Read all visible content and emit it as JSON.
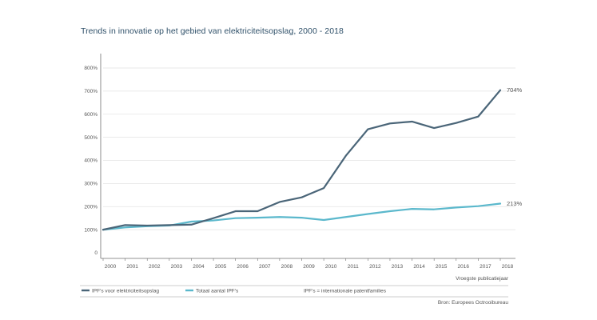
{
  "chart_data": {
    "type": "line",
    "title": "Trends in innovatie op het gebied van elektriciteitsopslag, 2000 - 2018",
    "xlabel": "Vroegste publicatiejaar",
    "ylabel": "",
    "x": [
      2000,
      2001,
      2002,
      2003,
      2004,
      2005,
      2006,
      2007,
      2008,
      2009,
      2010,
      2011,
      2012,
      2013,
      2014,
      2015,
      2016,
      2017,
      2018
    ],
    "x_tick_labels": [
      "2000",
      "2001",
      "2002",
      "2003",
      "2004",
      "2005",
      "2006",
      "2007",
      "2008",
      "2009",
      "2010",
      "2011",
      "2012",
      "2013",
      "2014",
      "2015",
      "2016",
      "2017",
      "2018"
    ],
    "ylim": [
      0,
      850
    ],
    "y_ticks": [
      0,
      100,
      200,
      300,
      400,
      500,
      600,
      700,
      800
    ],
    "y_tick_labels": [
      "0",
      "100%",
      "200%",
      "300%",
      "400%",
      "500%",
      "600%",
      "700%",
      "800%"
    ],
    "series": [
      {
        "name": "IPF's voor elektriciteitsopslag",
        "color": "#4a6578",
        "values": [
          100,
          120,
          118,
          120,
          122,
          150,
          180,
          180,
          220,
          240,
          280,
          420,
          535,
          560,
          568,
          540,
          562,
          590,
          704
        ],
        "end_label": "704%"
      },
      {
        "name": "Totaal aantal IPF's",
        "color": "#5bb8cc",
        "values": [
          100,
          110,
          115,
          118,
          135,
          140,
          150,
          152,
          155,
          152,
          142,
          155,
          168,
          180,
          190,
          188,
          196,
          202,
          213
        ],
        "end_label": "213%"
      }
    ],
    "grid": "horizontal",
    "legend_position": "bottom-left",
    "note": "IPF's = internationale patentfamilies",
    "source": "Bron: Europees Octrooibureau"
  }
}
